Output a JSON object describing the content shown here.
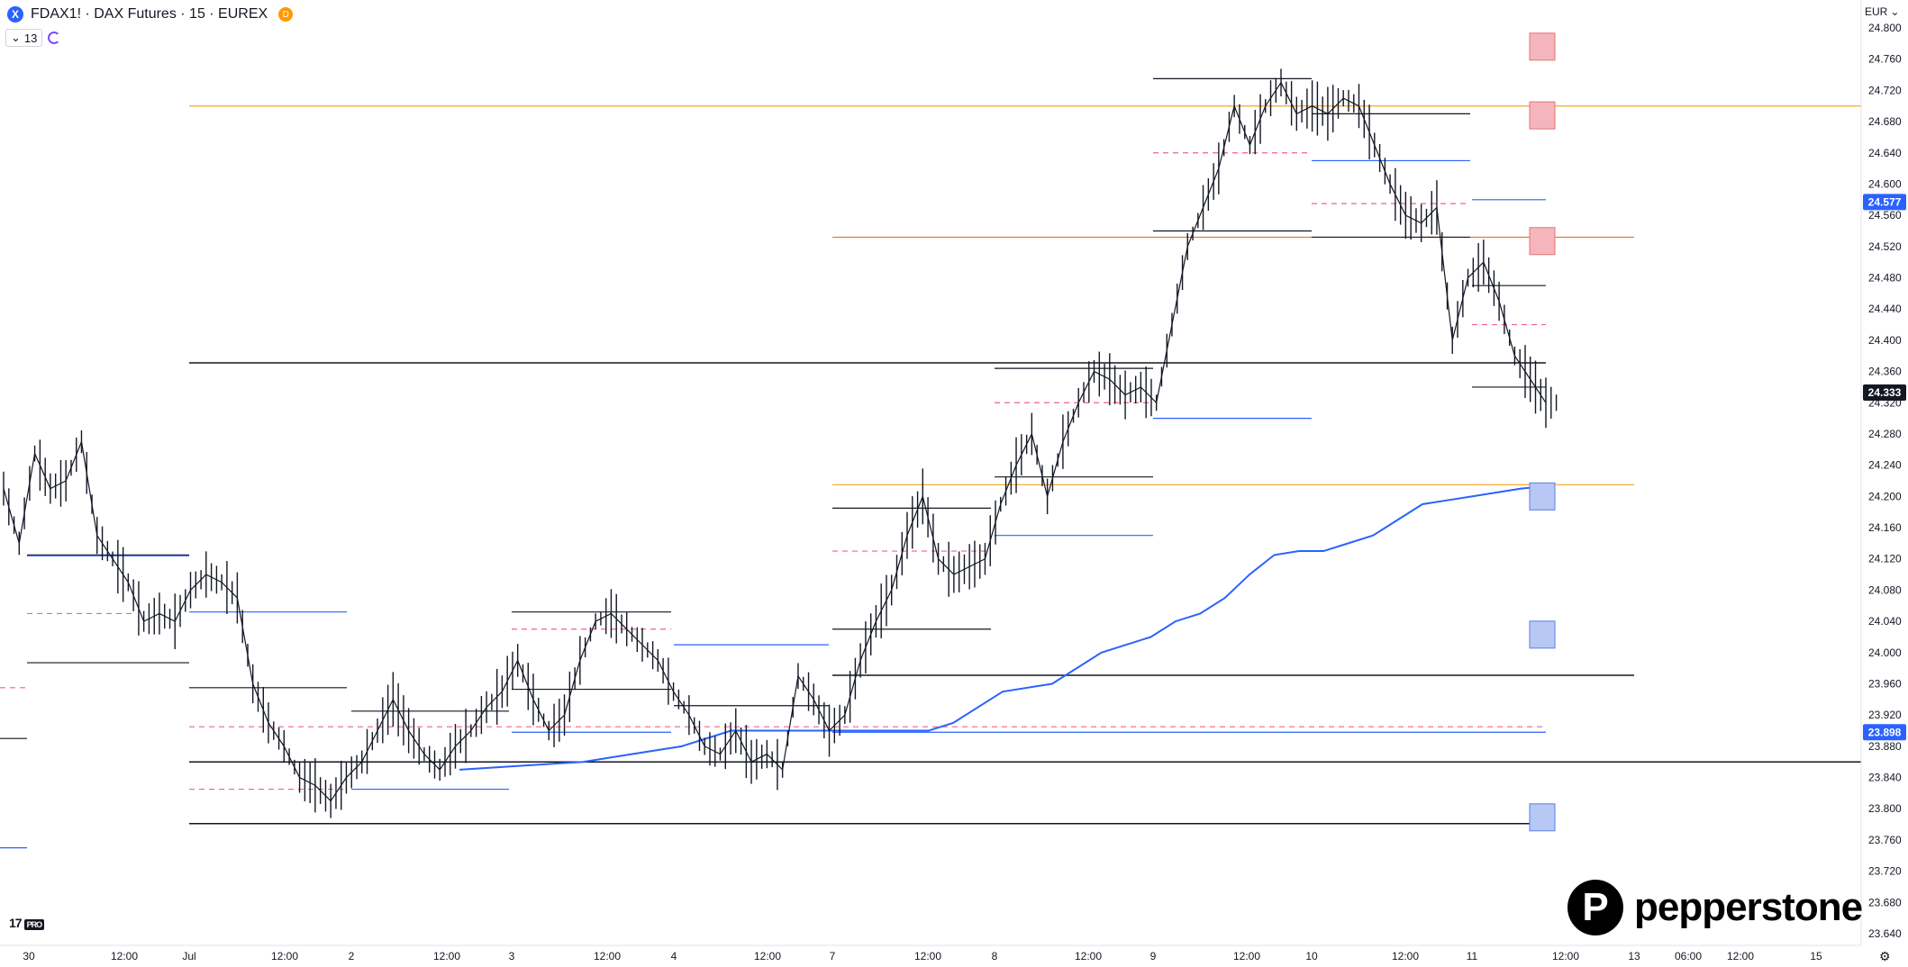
{
  "header": {
    "symbol_icon": "X",
    "title": "FDAX1! · DAX Futures · 15 · EUREX",
    "delayed_badge": "D"
  },
  "indicators": {
    "count": "13",
    "collapse_icon": "chevron-down-icon",
    "sync_icon": "refresh-icon"
  },
  "currency_button": {
    "label": "EUR",
    "icon": "chevron-down-icon"
  },
  "watermark": {
    "brand": "17",
    "tag": "PRO"
  },
  "brand": {
    "logo_letter": "P",
    "name": "pepperstone"
  },
  "settings_icon": "gear-icon",
  "chart_data": {
    "type": "candlestick",
    "title": "",
    "xlabel": "",
    "ylabel": "",
    "ylim": [
      23.62,
      24.82
    ],
    "grid": false,
    "y_ticks": [
      "24.800",
      "24.760",
      "24.720",
      "24.680",
      "24.640",
      "24.600",
      "24.560",
      "24.520",
      "24.480",
      "24.440",
      "24.400",
      "24.360",
      "24.320",
      "24.280",
      "24.240",
      "24.200",
      "24.160",
      "24.120",
      "24.080",
      "24.040",
      "24.000",
      "23.960",
      "23.920",
      "23.880",
      "23.840",
      "23.800",
      "23.760",
      "23.720",
      "23.680",
      "23.640"
    ],
    "y_tick_values": [
      24.8,
      24.76,
      24.72,
      24.68,
      24.64,
      24.6,
      24.56,
      24.52,
      24.48,
      24.44,
      24.4,
      24.36,
      24.32,
      24.28,
      24.24,
      24.2,
      24.16,
      24.12,
      24.08,
      24.04,
      24.0,
      23.96,
      23.92,
      23.88,
      23.84,
      23.8,
      23.76,
      23.72,
      23.68,
      23.64
    ],
    "x_ticks": [
      "30",
      "12:00",
      "Jul",
      "12:00",
      "2",
      "12:00",
      "3",
      "12:00",
      "4",
      "12:00",
      "7",
      "12:00",
      "8",
      "12:00",
      "9",
      "12:00",
      "10",
      "12:00",
      "11",
      "12:00",
      "13",
      "06:00",
      "12:00",
      "15"
    ],
    "price_badges": [
      {
        "label": "24.577",
        "value": 24.577,
        "color": "#2962ff"
      },
      {
        "label": "24.333",
        "value": 24.333,
        "color": "#131722"
      },
      {
        "label": "23.898",
        "value": 23.898,
        "color": "#2962ff"
      }
    ],
    "price_path": [
      [
        0,
        24.21
      ],
      [
        1,
        24.14
      ],
      [
        2,
        24.255
      ],
      [
        3,
        24.21
      ],
      [
        4,
        24.22
      ],
      [
        5,
        24.27
      ],
      [
        6,
        24.15
      ],
      [
        7,
        24.12
      ],
      [
        8,
        24.09
      ],
      [
        9,
        24.04
      ],
      [
        10,
        24.05
      ],
      [
        11,
        24.04
      ],
      [
        12,
        24.08
      ],
      [
        13,
        24.1
      ],
      [
        14,
        24.09
      ],
      [
        15,
        24.07
      ],
      [
        16,
        23.96
      ],
      [
        17,
        23.91
      ],
      [
        18,
        23.88
      ],
      [
        19,
        23.84
      ],
      [
        20,
        23.83
      ],
      [
        21,
        23.81
      ],
      [
        22,
        23.84
      ],
      [
        23,
        23.86
      ],
      [
        24,
        23.9
      ],
      [
        25,
        23.94
      ],
      [
        26,
        23.9
      ],
      [
        27,
        23.87
      ],
      [
        28,
        23.85
      ],
      [
        29,
        23.88
      ],
      [
        30,
        23.9
      ],
      [
        31,
        23.93
      ],
      [
        32,
        23.95
      ],
      [
        33,
        23.99
      ],
      [
        34,
        23.94
      ],
      [
        35,
        23.9
      ],
      [
        36,
        23.92
      ],
      [
        37,
        23.99
      ],
      [
        38,
        24.04
      ],
      [
        39,
        24.05
      ],
      [
        40,
        24.03
      ],
      [
        41,
        24.01
      ],
      [
        42,
        23.99
      ],
      [
        43,
        23.95
      ],
      [
        44,
        23.92
      ],
      [
        45,
        23.88
      ],
      [
        46,
        23.87
      ],
      [
        47,
        23.9
      ],
      [
        48,
        23.86
      ],
      [
        49,
        23.87
      ],
      [
        50,
        23.85
      ],
      [
        51,
        23.97
      ],
      [
        52,
        23.94
      ],
      [
        53,
        23.9
      ],
      [
        54,
        23.92
      ],
      [
        55,
        23.99
      ],
      [
        56,
        24.04
      ],
      [
        57,
        24.08
      ],
      [
        58,
        24.15
      ],
      [
        59,
        24.2
      ],
      [
        60,
        24.12
      ],
      [
        61,
        24.1
      ],
      [
        62,
        24.11
      ],
      [
        63,
        24.12
      ],
      [
        64,
        24.19
      ],
      [
        65,
        24.24
      ],
      [
        66,
        24.28
      ],
      [
        67,
        24.2
      ],
      [
        68,
        24.27
      ],
      [
        69,
        24.32
      ],
      [
        70,
        24.36
      ],
      [
        71,
        24.35
      ],
      [
        72,
        24.33
      ],
      [
        73,
        24.34
      ],
      [
        74,
        24.32
      ],
      [
        75,
        24.42
      ],
      [
        76,
        24.52
      ],
      [
        77,
        24.57
      ],
      [
        78,
        24.62
      ],
      [
        79,
        24.7
      ],
      [
        80,
        24.65
      ],
      [
        81,
        24.7
      ],
      [
        82,
        24.73
      ],
      [
        83,
        24.69
      ],
      [
        84,
        24.7
      ],
      [
        85,
        24.69
      ],
      [
        86,
        24.71
      ],
      [
        87,
        24.7
      ],
      [
        88,
        24.65
      ],
      [
        89,
        24.6
      ],
      [
        90,
        24.56
      ],
      [
        91,
        24.55
      ],
      [
        92,
        24.57
      ],
      [
        93,
        24.4
      ],
      [
        94,
        24.48
      ],
      [
        95,
        24.5
      ],
      [
        96,
        24.45
      ],
      [
        97,
        24.38
      ],
      [
        98,
        24.35
      ],
      [
        99,
        24.32
      ]
    ],
    "vwap_series": [
      [
        0,
        23.85
      ],
      [
        5,
        23.855
      ],
      [
        10,
        23.86
      ],
      [
        14,
        23.87
      ],
      [
        18,
        23.88
      ],
      [
        22,
        23.9
      ],
      [
        26,
        23.9
      ],
      [
        30,
        23.9
      ],
      [
        34,
        23.9
      ],
      [
        38,
        23.9
      ],
      [
        40,
        23.91
      ],
      [
        44,
        23.95
      ],
      [
        48,
        23.96
      ],
      [
        52,
        24.0
      ],
      [
        56,
        24.02
      ],
      [
        58,
        24.04
      ],
      [
        60,
        24.05
      ],
      [
        62,
        24.07
      ],
      [
        64,
        24.1
      ],
      [
        66,
        24.125
      ],
      [
        68,
        24.13
      ],
      [
        70,
        24.13
      ],
      [
        72,
        24.14
      ],
      [
        74,
        24.15
      ],
      [
        76,
        24.17
      ],
      [
        78,
        24.19
      ],
      [
        80,
        24.195
      ],
      [
        82,
        24.2
      ],
      [
        84,
        24.205
      ],
      [
        86,
        24.21
      ],
      [
        88,
        24.213
      ]
    ],
    "horizontal_levels": [
      {
        "value": 24.7,
        "color": "#f5a623",
        "style": "solid",
        "name": "orange-resistance-top"
      },
      {
        "value": 24.532,
        "color": "#e8742c",
        "style": "solid",
        "name": "orange-level-24532"
      },
      {
        "value": 24.371,
        "color": "#131722",
        "style": "solid",
        "name": "black-level-24371"
      },
      {
        "value": 24.215,
        "color": "#f5a623",
        "style": "solid",
        "name": "orange-level-24215"
      },
      {
        "value": 23.971,
        "color": "#131722",
        "style": "solid",
        "name": "black-level-23971"
      },
      {
        "value": 23.905,
        "color": "#f06292",
        "style": "dashed",
        "name": "pink-level-23905"
      },
      {
        "value": 23.898,
        "color": "#2962ff",
        "style": "solid",
        "name": "blue-level-23898"
      },
      {
        "value": 23.86,
        "color": "#131722",
        "style": "solid",
        "name": "black-level-23860"
      },
      {
        "value": 23.781,
        "color": "#131722",
        "style": "solid",
        "name": "black-level-23781"
      }
    ],
    "markers": [
      {
        "value": 24.776,
        "color": "#f4b6bc",
        "name": "red-box-1"
      },
      {
        "value": 24.688,
        "color": "#f4b6bc",
        "name": "red-box-2"
      },
      {
        "value": 24.527,
        "color": "#f4b6bc",
        "name": "red-box-3"
      },
      {
        "value": 24.2,
        "color": "#b7c8f5",
        "name": "blue-box-1"
      },
      {
        "value": 24.023,
        "color": "#b7c8f5",
        "name": "blue-box-2"
      },
      {
        "value": 23.789,
        "color": "#b7c8f5",
        "name": "blue-box-3"
      }
    ]
  }
}
